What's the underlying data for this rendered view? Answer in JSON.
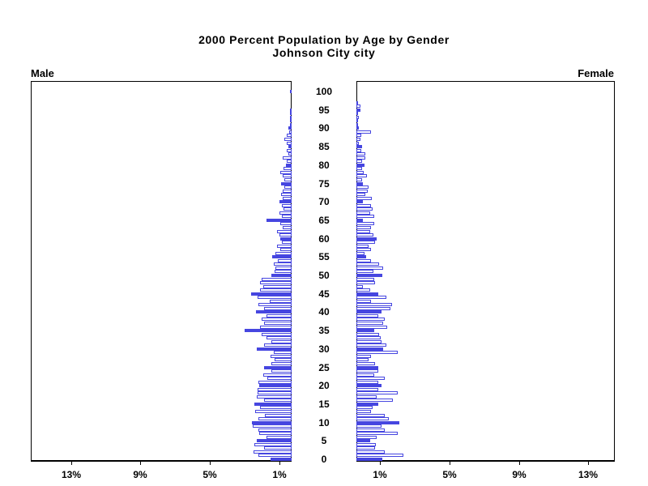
{
  "title": {
    "line1": "2000 Percent Population by Age by Gender",
    "line2": "Johnson City city"
  },
  "labels": {
    "male": "Male",
    "female": "Female"
  },
  "chart_data": {
    "type": "bar",
    "subtype": "population-pyramid",
    "title": "2000 Percent Population by Age by Gender",
    "subtitle": "Johnson City city",
    "unit": "percent of total population",
    "age_min": 0,
    "age_max": 100,
    "age_tick_interval": 5,
    "age_tick_labels": [
      "0",
      "5",
      "10",
      "15",
      "20",
      "25",
      "30",
      "35",
      "40",
      "45",
      "50",
      "55",
      "60",
      "65",
      "70",
      "75",
      "80",
      "85",
      "90",
      "95",
      "100"
    ],
    "x_ticks_percent": [
      1,
      5,
      9,
      13
    ],
    "x_tick_labels": [
      "1%",
      "5%",
      "9%",
      "13%"
    ],
    "xlim_percent": [
      0,
      15
    ],
    "highlight_every": 5,
    "legend": "none",
    "grid": false,
    "colors": {
      "bar_fill": "#4646e0",
      "bar_outline": "#4646e0",
      "bar_empty_fill": "#ffffff",
      "axis": "#000000",
      "background": "#ffffff"
    },
    "series": [
      {
        "name": "Male",
        "side": "left",
        "values": [
          1.2,
          1.9,
          2.2,
          1.6,
          2.15,
          2.0,
          1.45,
          1.85,
          1.9,
          2.25,
          2.3,
          1.9,
          1.55,
          2.1,
          1.8,
          2.15,
          1.6,
          2.0,
          1.95,
          1.95,
          1.85,
          1.9,
          1.4,
          1.65,
          1.15,
          1.6,
          1.15,
          1.0,
          1.2,
          1.05,
          2.0,
          1.6,
          1.15,
          1.45,
          1.75,
          2.7,
          1.8,
          1.6,
          1.75,
          1.45,
          2.05,
          1.6,
          1.9,
          1.25,
          1.95,
          2.35,
          1.8,
          1.65,
          1.8,
          1.75,
          1.15,
          1.0,
          0.95,
          1.05,
          0.8,
          1.1,
          0.95,
          0.65,
          0.85,
          0.57,
          0.65,
          0.68,
          0.84,
          0.5,
          0.65,
          1.43,
          0.57,
          0.68,
          0.47,
          0.57,
          0.68,
          0.5,
          0.62,
          0.5,
          0.42,
          0.62,
          0.42,
          0.53,
          0.65,
          0.45,
          0.34,
          0.26,
          0.5,
          0.19,
          0.26,
          0.19,
          0.29,
          0.42,
          0.26,
          0.14,
          0.19,
          0.08,
          0.05,
          0.05,
          0.03,
          0.02,
          0.0,
          0.0,
          0.0,
          0.0,
          0.1
        ]
      },
      {
        "name": "Female",
        "side": "right",
        "values": [
          1.5,
          2.7,
          1.63,
          1.09,
          1.13,
          0.78,
          1.16,
          2.37,
          1.63,
          1.47,
          2.48,
          1.86,
          1.63,
          0.85,
          0.93,
          1.24,
          2.09,
          1.16,
          2.37,
          1.24,
          1.47,
          1.24,
          1.63,
          1.01,
          1.24,
          1.24,
          1.09,
          0.7,
          0.85,
          2.4,
          1.55,
          1.71,
          1.47,
          1.4,
          1.32,
          1.04,
          1.78,
          1.55,
          1.63,
          1.24,
          1.47,
          1.94,
          2.06,
          0.85,
          1.71,
          1.24,
          0.78,
          0.39,
          1.09,
          1.01,
          1.5,
          1.0,
          1.55,
          1.32,
          0.85,
          0.57,
          0.46,
          0.82,
          0.7,
          1.08,
          1.19,
          0.97,
          0.78,
          0.85,
          1.01,
          0.36,
          1.01,
          0.78,
          0.93,
          0.85,
          0.36,
          0.88,
          0.51,
          0.67,
          0.7,
          0.39,
          0.31,
          0.62,
          0.4,
          0.35,
          0.45,
          0.35,
          0.5,
          0.5,
          0.3,
          0.33,
          0.15,
          0.25,
          0.3,
          0.85,
          0.12,
          0.08,
          0.1,
          0.15,
          0.05,
          0.25,
          0.25,
          0.05,
          0.0,
          0.0,
          0.0
        ]
      }
    ]
  }
}
